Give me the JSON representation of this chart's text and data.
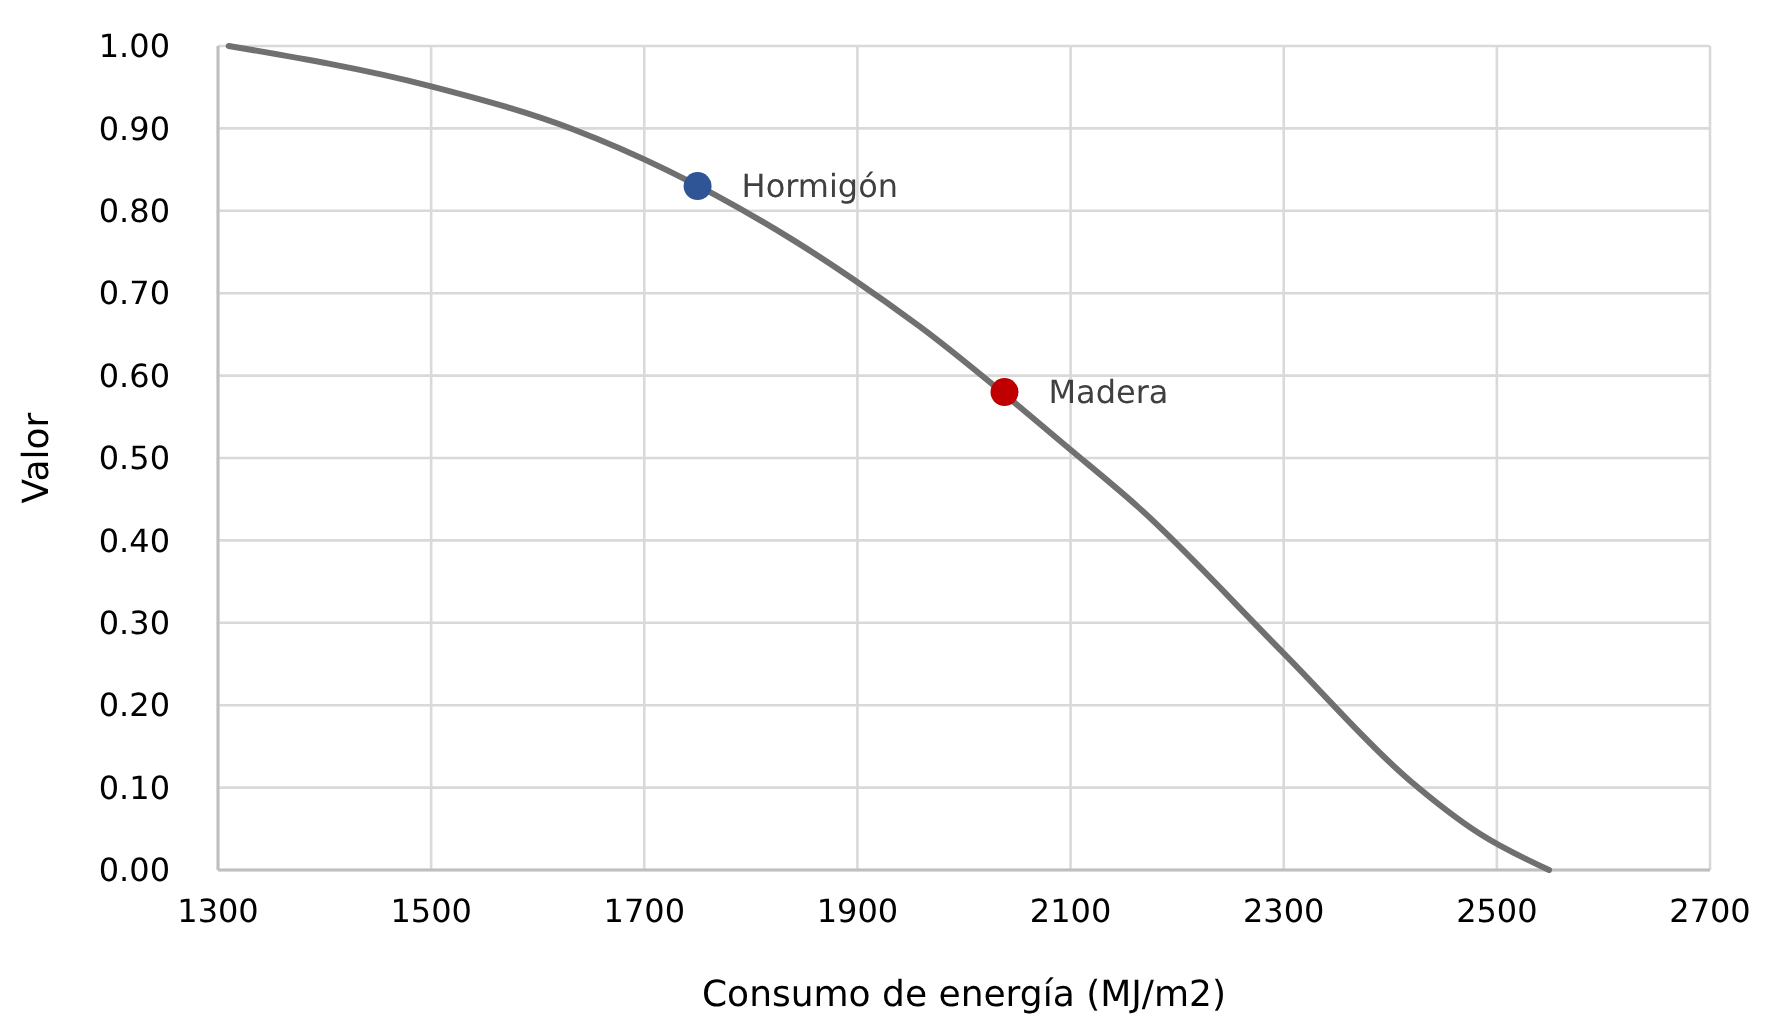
{
  "chart_data": {
    "type": "line",
    "xlabel": "Consumo de energía (MJ/m2)",
    "ylabel": "Valor",
    "xlim": [
      1300,
      2700
    ],
    "xticks": [
      1300,
      1500,
      1700,
      1900,
      2100,
      2300,
      2500,
      2700
    ],
    "ylim": [
      0,
      1
    ],
    "yticks": [
      {
        "value": 0,
        "label": "0.00"
      },
      {
        "value": 0.1,
        "label": "0.10"
      },
      {
        "value": 0.2,
        "label": "0.20"
      },
      {
        "value": 0.3,
        "label": "0.30"
      },
      {
        "value": 0.4,
        "label": "0.40"
      },
      {
        "value": 0.5,
        "label": "0.50"
      },
      {
        "value": 0.6,
        "label": "0.60"
      },
      {
        "value": 0.7,
        "label": "0.70"
      },
      {
        "value": 0.8,
        "label": "0.80"
      },
      {
        "value": 0.9,
        "label": "0.90"
      },
      {
        "value": 1,
        "label": "1.00"
      }
    ],
    "grid": true,
    "series": [
      {
        "color": "#707070",
        "marker": "none",
        "x": [
          1310,
          1500,
          1633,
          1839,
          1896,
          1958,
          2100,
          2163,
          2300,
          2418,
          2484,
          2549
        ],
        "values": [
          1.0,
          0.951,
          0.899,
          0.765,
          0.717,
          0.66,
          0.51,
          0.441,
          0.263,
          0.109,
          0.044,
          0.0
        ]
      },
      {
        "type": "scatter",
        "name": "Hormigón",
        "color": "#2f5597",
        "marker": "circle",
        "x": [
          1750
        ],
        "values": [
          0.83
        ]
      },
      {
        "type": "scatter",
        "name": "Madera",
        "color": "#c00000",
        "marker": "circle",
        "x": [
          2038
        ],
        "values": [
          0.58
        ]
      }
    ]
  }
}
